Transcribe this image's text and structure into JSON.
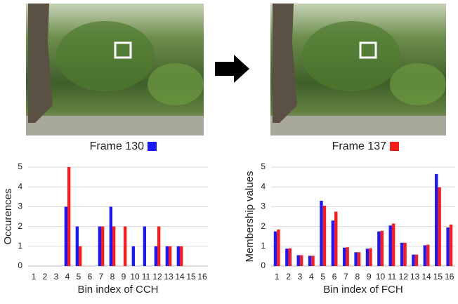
{
  "frames": [
    {
      "label": "Frame 130",
      "color": "#1a1aff"
    },
    {
      "label": "Frame 137",
      "color": "#ff1a1a"
    }
  ],
  "chart_data": [
    {
      "type": "bar",
      "y_label": "Occurences",
      "x_label": "Bin index of CCH",
      "categories": [
        "1",
        "2",
        "3",
        "4",
        "5",
        "6",
        "7",
        "8",
        "9",
        "10",
        "11",
        "12",
        "13",
        "14",
        "15",
        "16"
      ],
      "series": [
        {
          "color": "#1a1aff",
          "values": [
            0,
            0,
            0,
            3,
            2,
            0,
            2,
            3,
            0,
            1,
            2,
            1,
            1,
            1,
            0,
            0
          ]
        },
        {
          "color": "#ff1a1a",
          "values": [
            0,
            0,
            0,
            5,
            1,
            0,
            2,
            2,
            2,
            0,
            0,
            2,
            1,
            1,
            0,
            0
          ]
        }
      ],
      "ylim": [
        0,
        5
      ],
      "yticks": [
        0,
        1,
        2,
        3,
        4,
        5
      ],
      "grid": true
    },
    {
      "type": "bar",
      "y_label": "Membership values",
      "x_label": "Bin index of FCH",
      "categories": [
        "1",
        "2",
        "3",
        "4",
        "5",
        "6",
        "7",
        "8",
        "9",
        "10",
        "11",
        "12",
        "13",
        "14",
        "15",
        "16"
      ],
      "series": [
        {
          "color": "#1a1aff",
          "values": [
            1.75,
            0.88,
            0.55,
            0.52,
            3.3,
            2.3,
            0.93,
            0.7,
            0.88,
            1.75,
            2.05,
            1.18,
            0.58,
            1.05,
            4.65,
            1.95
          ]
        },
        {
          "color": "#ff1a1a",
          "values": [
            1.85,
            0.9,
            0.55,
            0.52,
            3.05,
            2.75,
            0.95,
            0.7,
            0.9,
            1.78,
            2.15,
            1.18,
            0.58,
            1.08,
            3.98,
            2.1
          ]
        }
      ],
      "ylim": [
        0,
        5
      ],
      "yticks": [
        0,
        1,
        2,
        3,
        4,
        5
      ],
      "grid": true
    }
  ]
}
